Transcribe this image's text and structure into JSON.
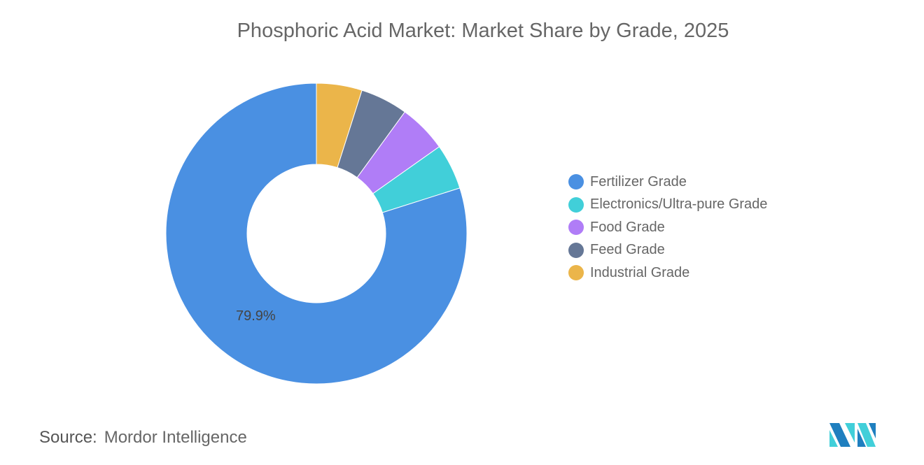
{
  "chart_data": {
    "type": "pie",
    "donut": true,
    "title": "Phosphoric Acid Market: Market Share by Grade, 2025",
    "series": [
      {
        "name": "Industrial Grade",
        "value": 4.9,
        "color": "#EBB54A"
      },
      {
        "name": "Feed Grade",
        "value": 5.1,
        "color": "#657796"
      },
      {
        "name": "Food Grade",
        "value": 5.2,
        "color": "#B07DF7"
      },
      {
        "name": "Electronics/Ultra-pure Grade",
        "value": 4.9,
        "color": "#41CFD9"
      },
      {
        "name": "Fertilizer Grade",
        "value": 79.9,
        "color": "#4A90E2"
      }
    ],
    "data_labels": [
      {
        "series": "Fertilizer Grade",
        "text": "79.9%"
      }
    ],
    "legend": {
      "placement": "right",
      "order": [
        "Fertilizer Grade",
        "Electronics/Ultra-pure Grade",
        "Food Grade",
        "Feed Grade",
        "Industrial Grade"
      ]
    }
  },
  "source": {
    "label": "Source:",
    "value": "Mordor Intelligence"
  },
  "logo": {
    "text": "Mordor Intelligence logo",
    "colors": [
      "#1F7FBF",
      "#41CFD9"
    ]
  }
}
